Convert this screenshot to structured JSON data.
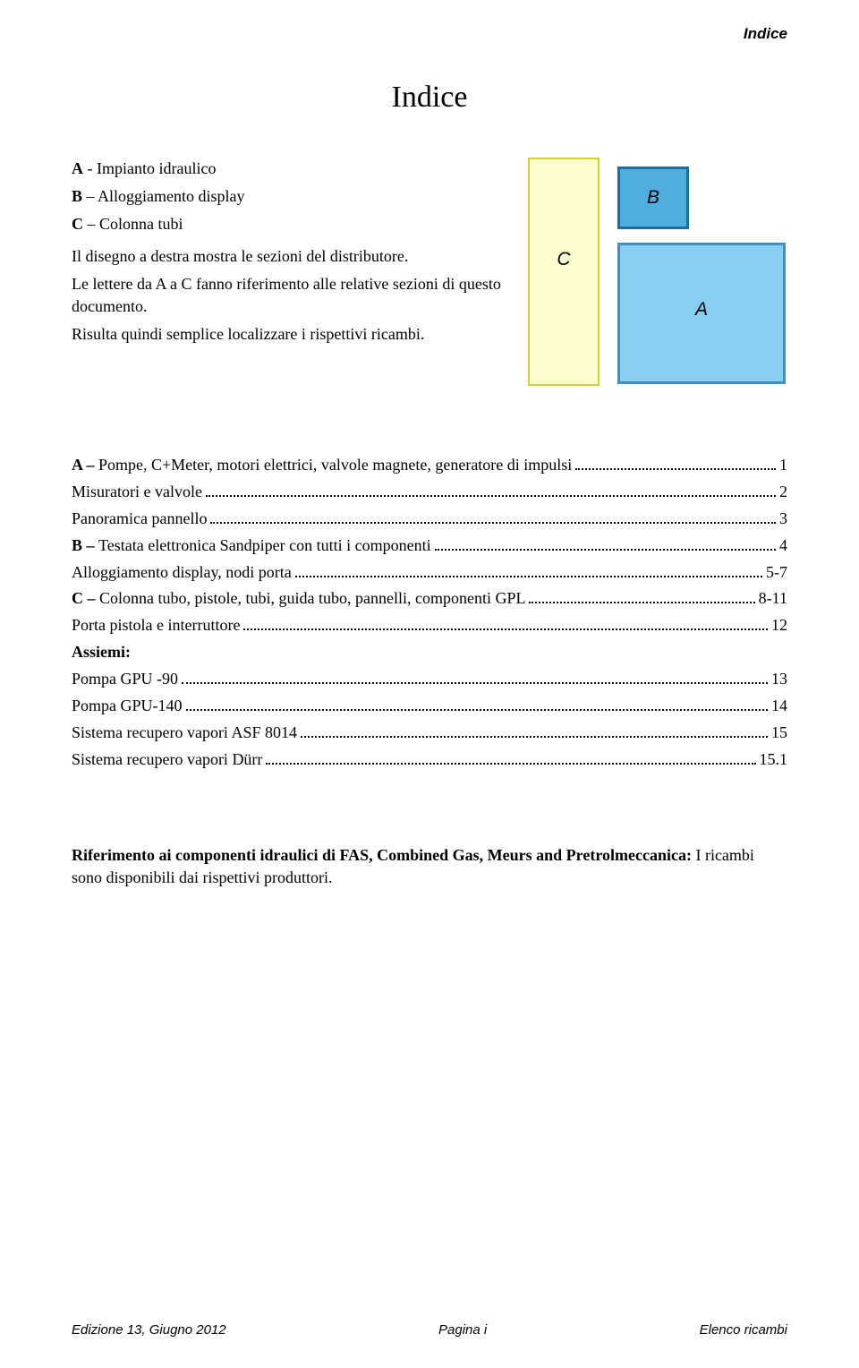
{
  "header": {
    "right": "Indice"
  },
  "title": "Indice",
  "intro": {
    "line_a_bold": "A",
    "line_a_rest": " - Impianto idraulico",
    "line_b_bold": "B",
    "line_b_rest": " – Alloggiamento display",
    "line_c_bold": "C",
    "line_c_rest": " – Colonna tubi",
    "para1": "Il disegno a destra mostra le sezioni del distributore.",
    "para2": "Le lettere da A a C fanno riferimento alle relative sezioni di questo documento.",
    "para3": "Risulta quindi semplice localizzare i rispettivi ricambi."
  },
  "diagram": {
    "c": {
      "label": "C",
      "fill": "#fcfcce",
      "stroke": "#d6cf33",
      "stroke_width": "2px"
    },
    "b": {
      "label": "B",
      "fill": "#4faee0",
      "stroke": "#1a6fa0",
      "stroke_width": "3px"
    },
    "a": {
      "label": "A",
      "fill": "#87cef0",
      "stroke": "#3d8fc2",
      "stroke_width": "3px"
    }
  },
  "toc": [
    {
      "prefix": "A – ",
      "text": "Pompe, C+Meter, motori elettrici, valvole magnete, generatore di impulsi",
      "page": "1",
      "bold_prefix": true
    },
    {
      "prefix": "",
      "text": "Misuratori e valvole",
      "page": "2",
      "bold_prefix": false
    },
    {
      "prefix": "",
      "text": "Panoramica pannello",
      "page": "3",
      "bold_prefix": false
    },
    {
      "prefix": "B – ",
      "text": "Testata elettronica Sandpiper con tutti i componenti",
      "page": "4",
      "bold_prefix": true
    },
    {
      "prefix": "",
      "text": "Alloggiamento display, nodi porta",
      "page": " 5-7",
      "bold_prefix": false
    },
    {
      "prefix": "C – ",
      "text": "Colonna tubo, pistole, tubi, guida tubo, pannelli, componenti GPL",
      "page": " 8-11",
      "bold_prefix": true
    },
    {
      "prefix": "",
      "text": "Porta pistola e interruttore",
      "page": "12",
      "bold_prefix": false
    }
  ],
  "assiemi_label": "Assiemi:",
  "toc2": [
    {
      "text": "Pompa GPU -90",
      "page": "13"
    },
    {
      "text": "Pompa GPU-140",
      "page": "14"
    },
    {
      "text": "Sistema recupero vapori ASF 8014",
      "page": "15"
    },
    {
      "text": "Sistema recupero vapori Dürr",
      "page": "15.1"
    }
  ],
  "reference": {
    "bold": "Riferimento ai componenti idraulici di FAS, Combined Gas, Meurs and Pretrolmeccanica:",
    "rest": " I ricambi sono disponibili dai rispettivi produttori."
  },
  "footer": {
    "left": "Edizione 13, Giugno 2012",
    "center": "Pagina i",
    "right": "Elenco ricambi"
  }
}
